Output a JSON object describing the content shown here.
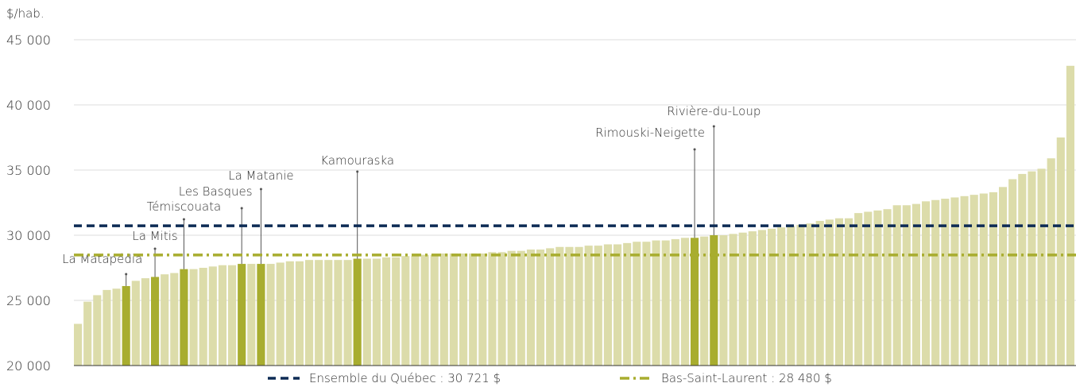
{
  "chart_data": {
    "type": "bar",
    "y_axis_label": "$/hab.",
    "ylim": [
      20000,
      45000
    ],
    "yticks": [
      {
        "value": 20000,
        "label": "20 000"
      },
      {
        "value": 25000,
        "label": "25 000"
      },
      {
        "value": 30000,
        "label": "30 000"
      },
      {
        "value": 35000,
        "label": "35 000"
      },
      {
        "value": 40000,
        "label": "40 000"
      },
      {
        "value": 45000,
        "label": "45 000"
      }
    ],
    "grid": true,
    "color": "#dcdcaa",
    "highlight_color": "#a8ad2f",
    "categories": [
      null,
      null,
      null,
      null,
      null,
      "La Matapédia",
      null,
      null,
      "La Mitis",
      null,
      null,
      "Témiscouata",
      null,
      null,
      null,
      null,
      null,
      "Les Basques",
      null,
      "La Matanie",
      null,
      null,
      null,
      null,
      null,
      null,
      null,
      null,
      null,
      "Kamouraska",
      null,
      null,
      null,
      null,
      null,
      null,
      null,
      null,
      null,
      null,
      null,
      null,
      null,
      null,
      null,
      null,
      null,
      null,
      null,
      null,
      null,
      null,
      null,
      null,
      null,
      null,
      null,
      null,
      null,
      null,
      null,
      null,
      null,
      null,
      "Rimouski-Neigette",
      null,
      "Rivière-du-Loup",
      null,
      null,
      null,
      null,
      null,
      null,
      null,
      null,
      null,
      null,
      null,
      null,
      null,
      null,
      null,
      null,
      null,
      null,
      null,
      null,
      null,
      null,
      null,
      null,
      null,
      null,
      null,
      null,
      null,
      null,
      null,
      null,
      null,
      null,
      null,
      null,
      null
    ],
    "values": [
      23200,
      24900,
      25400,
      25800,
      25900,
      26100,
      26500,
      26700,
      26800,
      27000,
      27100,
      27400,
      27400,
      27500,
      27600,
      27700,
      27700,
      27800,
      27800,
      27800,
      27800,
      27900,
      28000,
      28000,
      28100,
      28100,
      28100,
      28100,
      28100,
      28200,
      28200,
      28200,
      28300,
      28300,
      28400,
      28400,
      28500,
      28500,
      28600,
      28600,
      28600,
      28600,
      28600,
      28700,
      28700,
      28800,
      28800,
      28900,
      28900,
      29000,
      29100,
      29100,
      29100,
      29200,
      29200,
      29300,
      29300,
      29400,
      29500,
      29500,
      29600,
      29600,
      29700,
      29800,
      29800,
      29900,
      30000,
      30000,
      30100,
      30200,
      30300,
      30400,
      30500,
      30600,
      30700,
      30800,
      30900,
      31100,
      31200,
      31300,
      31300,
      31700,
      31800,
      31900,
      32000,
      32300,
      32300,
      32400,
      32600,
      32700,
      32800,
      32900,
      33000,
      33100,
      33200,
      33300,
      33700,
      34300,
      34700,
      34900,
      35100,
      35900,
      37500,
      43000
    ],
    "reference_lines": [
      {
        "name": "Ensemble du Québec : 30 721 $",
        "value": 30721,
        "color": "#0d2b55",
        "style": "dashed"
      },
      {
        "name": "Bas-Saint-Laurent : 28 480 $",
        "value": 28480,
        "color": "#a8ad2f",
        "style": "dashdot"
      }
    ]
  }
}
